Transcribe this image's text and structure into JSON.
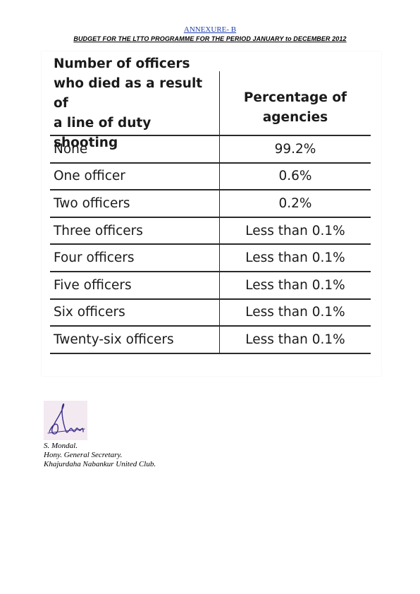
{
  "document": {
    "annexure_label": "ANNEXURE- B",
    "heading": "BUDGET FOR THE LTTO PROGRAMME FOR THE PERIOD JANUARY to DECEMBER 2012"
  },
  "table": {
    "header": {
      "left": "Number of officers\nwho died as a result of\na line of duty shooting",
      "right": "Percentage of\nagencies"
    },
    "rows": [
      {
        "label": "None",
        "value": "99.2%"
      },
      {
        "label": "One officer",
        "value": "0.6%"
      },
      {
        "label": "Two officers",
        "value": "0.2%"
      },
      {
        "label": "Three officers",
        "value": "Less than 0.1%"
      },
      {
        "label": "Four officers",
        "value": "Less than 0.1%"
      },
      {
        "label": "Five officers",
        "value": "Less than 0.1%"
      },
      {
        "label": "Six officers",
        "value": "Less than 0.1%"
      },
      {
        "label": "Twenty-six officers",
        "value": "Less than 0.1%"
      }
    ]
  },
  "signature": {
    "name": "S. Mondal.",
    "title": "Hony. General Secretary.",
    "organization": "Khajurdaha Nabankur United Club.",
    "ink_color": "#3a2f8a"
  }
}
